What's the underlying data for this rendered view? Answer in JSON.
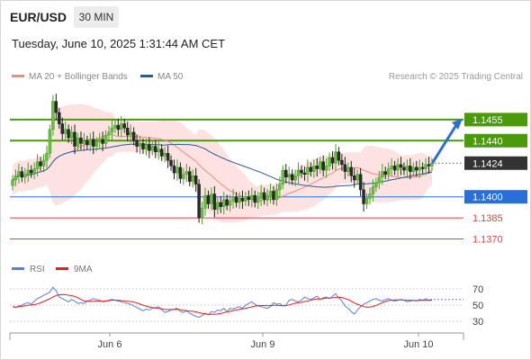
{
  "header": {
    "symbol": "EUR/USD",
    "timeframe": "30 MIN",
    "timestamp": "Tuesday, June 10, 2025 1:31:44 AM CET"
  },
  "legend": {
    "ma20_label": "MA 20 + Bollinger Bands",
    "ma50_label": "MA 50",
    "credit": "Research © 2025 Trading Central"
  },
  "colors": {
    "green": "#4a9a0a",
    "blue": "#2a6fd6",
    "red": "#e0413a",
    "dark": "#333333",
    "ma20": "#f08a80",
    "ma50": "#2d5a9a",
    "band": "#fbd8d6",
    "rsi": "#5b7fd9",
    "rsi_ma": "#e0201a"
  },
  "chart_data": [
    {
      "type": "candlestick",
      "ylim": [
        1.1362,
        1.1478
      ],
      "x_ticks": [
        "Jun 6",
        "Jun 9",
        "Jun 10"
      ],
      "price_levels": [
        {
          "value": 1.1455,
          "label": "1.1455",
          "style": "resistance-green"
        },
        {
          "value": 1.144,
          "label": "1.1440",
          "style": "resistance-green"
        },
        {
          "value": 1.1424,
          "label": "1.1424",
          "style": "current-price"
        },
        {
          "value": 1.14,
          "label": "1.1400",
          "style": "pivot-blue"
        },
        {
          "value": 1.1385,
          "label": "1.1385",
          "style": "support-red"
        },
        {
          "value": 1.137,
          "label": "1.1370",
          "style": "support-red"
        }
      ],
      "forecast_target": 1.1455,
      "close_series": [
        1.1412,
        1.1415,
        1.1418,
        1.1414,
        1.1416,
        1.1419,
        1.1417,
        1.142,
        1.1425,
        1.1422,
        1.1426,
        1.1431,
        1.1448,
        1.1468,
        1.146,
        1.1452,
        1.1445,
        1.1448,
        1.1442,
        1.1446,
        1.1436,
        1.1442,
        1.1438,
        1.144,
        1.1437,
        1.1441,
        1.1436,
        1.1439,
        1.1441,
        1.1438,
        1.1444,
        1.1446,
        1.1449,
        1.1451,
        1.1448,
        1.1452,
        1.1449,
        1.1444,
        1.1446,
        1.144,
        1.1436,
        1.1438,
        1.1434,
        1.1437,
        1.1433,
        1.1436,
        1.1432,
        1.1434,
        1.1429,
        1.1431,
        1.1426,
        1.1422,
        1.1417,
        1.1421,
        1.1413,
        1.1416,
        1.1418,
        1.1411,
        1.1415,
        1.1409,
        1.1385,
        1.1392,
        1.1401,
        1.1395,
        1.1402,
        1.1391,
        1.1396,
        1.1393,
        1.1398,
        1.1394,
        1.1397,
        1.14,
        1.1396,
        1.1399,
        1.1397,
        1.14,
        1.1398,
        1.1401,
        1.1396,
        1.1399,
        1.1403,
        1.1398,
        1.1401,
        1.1404,
        1.1398,
        1.1405,
        1.1409,
        1.1419,
        1.1414,
        1.1416,
        1.1412,
        1.1415,
        1.1419,
        1.1417,
        1.1416,
        1.1421,
        1.1418,
        1.1422,
        1.142,
        1.1425,
        1.1419,
        1.1422,
        1.1428,
        1.1424,
        1.1432,
        1.1426,
        1.1423,
        1.1418,
        1.1421,
        1.1415,
        1.1412,
        1.1416,
        1.1405,
        1.1395,
        1.1399,
        1.1402,
        1.1407,
        1.141,
        1.1414,
        1.1418,
        1.1416,
        1.142,
        1.1422,
        1.1419,
        1.1423,
        1.1421,
        1.1419,
        1.1422,
        1.1418,
        1.1421,
        1.1419,
        1.1421,
        1.142,
        1.1423,
        1.1422,
        1.1424
      ]
    },
    {
      "type": "line",
      "title": "RSI",
      "series_names": [
        "RSI",
        "9MA"
      ],
      "y_ticks": [
        70,
        50,
        30
      ],
      "ylim": [
        20,
        80
      ],
      "rsi": [
        48,
        47,
        49,
        50,
        52,
        53,
        51,
        55,
        58,
        60,
        62,
        64,
        66,
        72,
        68,
        60,
        58,
        56,
        54,
        57,
        55,
        52,
        53,
        52,
        55,
        56,
        58,
        57,
        56,
        54,
        55,
        56,
        57,
        56,
        55,
        54,
        53,
        52,
        51,
        49,
        47,
        45,
        43,
        45,
        44,
        46,
        47,
        48,
        44,
        41,
        42,
        44,
        45,
        46,
        42,
        41,
        43,
        40,
        38,
        36,
        35,
        37,
        40,
        38,
        42,
        41,
        44,
        43,
        46,
        42,
        46,
        45,
        47,
        48,
        46,
        50,
        52,
        54,
        51,
        49,
        48,
        47,
        46,
        48,
        53,
        51,
        52,
        49,
        50,
        56,
        57,
        55,
        54,
        56,
        60,
        58,
        57,
        59,
        61,
        57,
        59,
        60,
        58,
        61,
        64,
        59,
        55,
        49,
        46,
        42,
        39,
        44,
        48,
        51,
        53,
        55,
        57,
        58,
        56,
        55,
        57,
        58,
        56,
        55,
        56,
        57,
        56,
        54,
        55,
        56,
        55,
        57,
        56,
        58,
        56,
        57
      ]
    }
  ]
}
